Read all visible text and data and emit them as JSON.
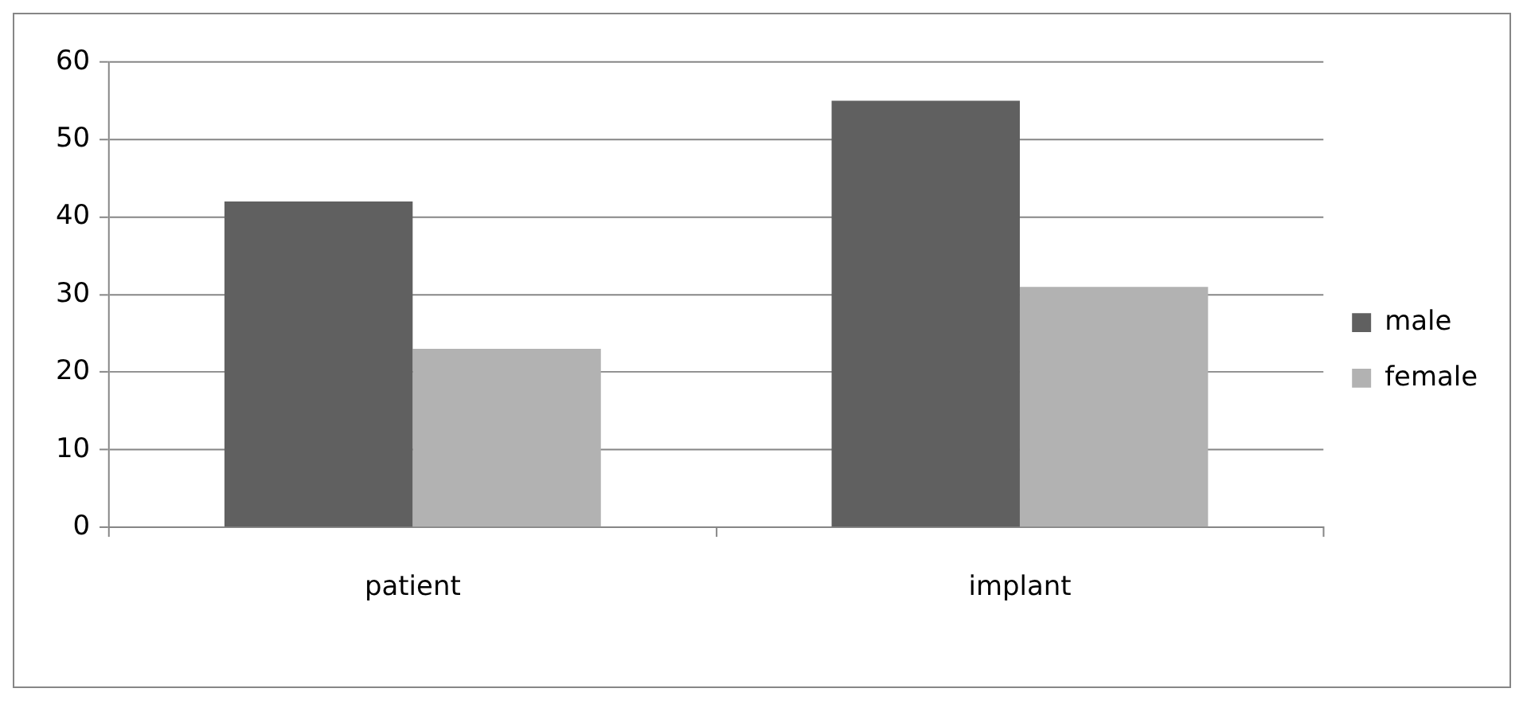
{
  "chart_data": {
    "type": "bar",
    "categories": [
      "patient",
      "implant"
    ],
    "series": [
      {
        "name": "male",
        "color": "#606060",
        "values": [
          42,
          55
        ]
      },
      {
        "name": "female",
        "color": "#b2b2b2",
        "values": [
          23,
          31
        ]
      }
    ],
    "ylim": [
      0,
      60
    ],
    "yticks": [
      0,
      10,
      20,
      30,
      40,
      50,
      60
    ],
    "grid": "y",
    "legend": "right"
  }
}
